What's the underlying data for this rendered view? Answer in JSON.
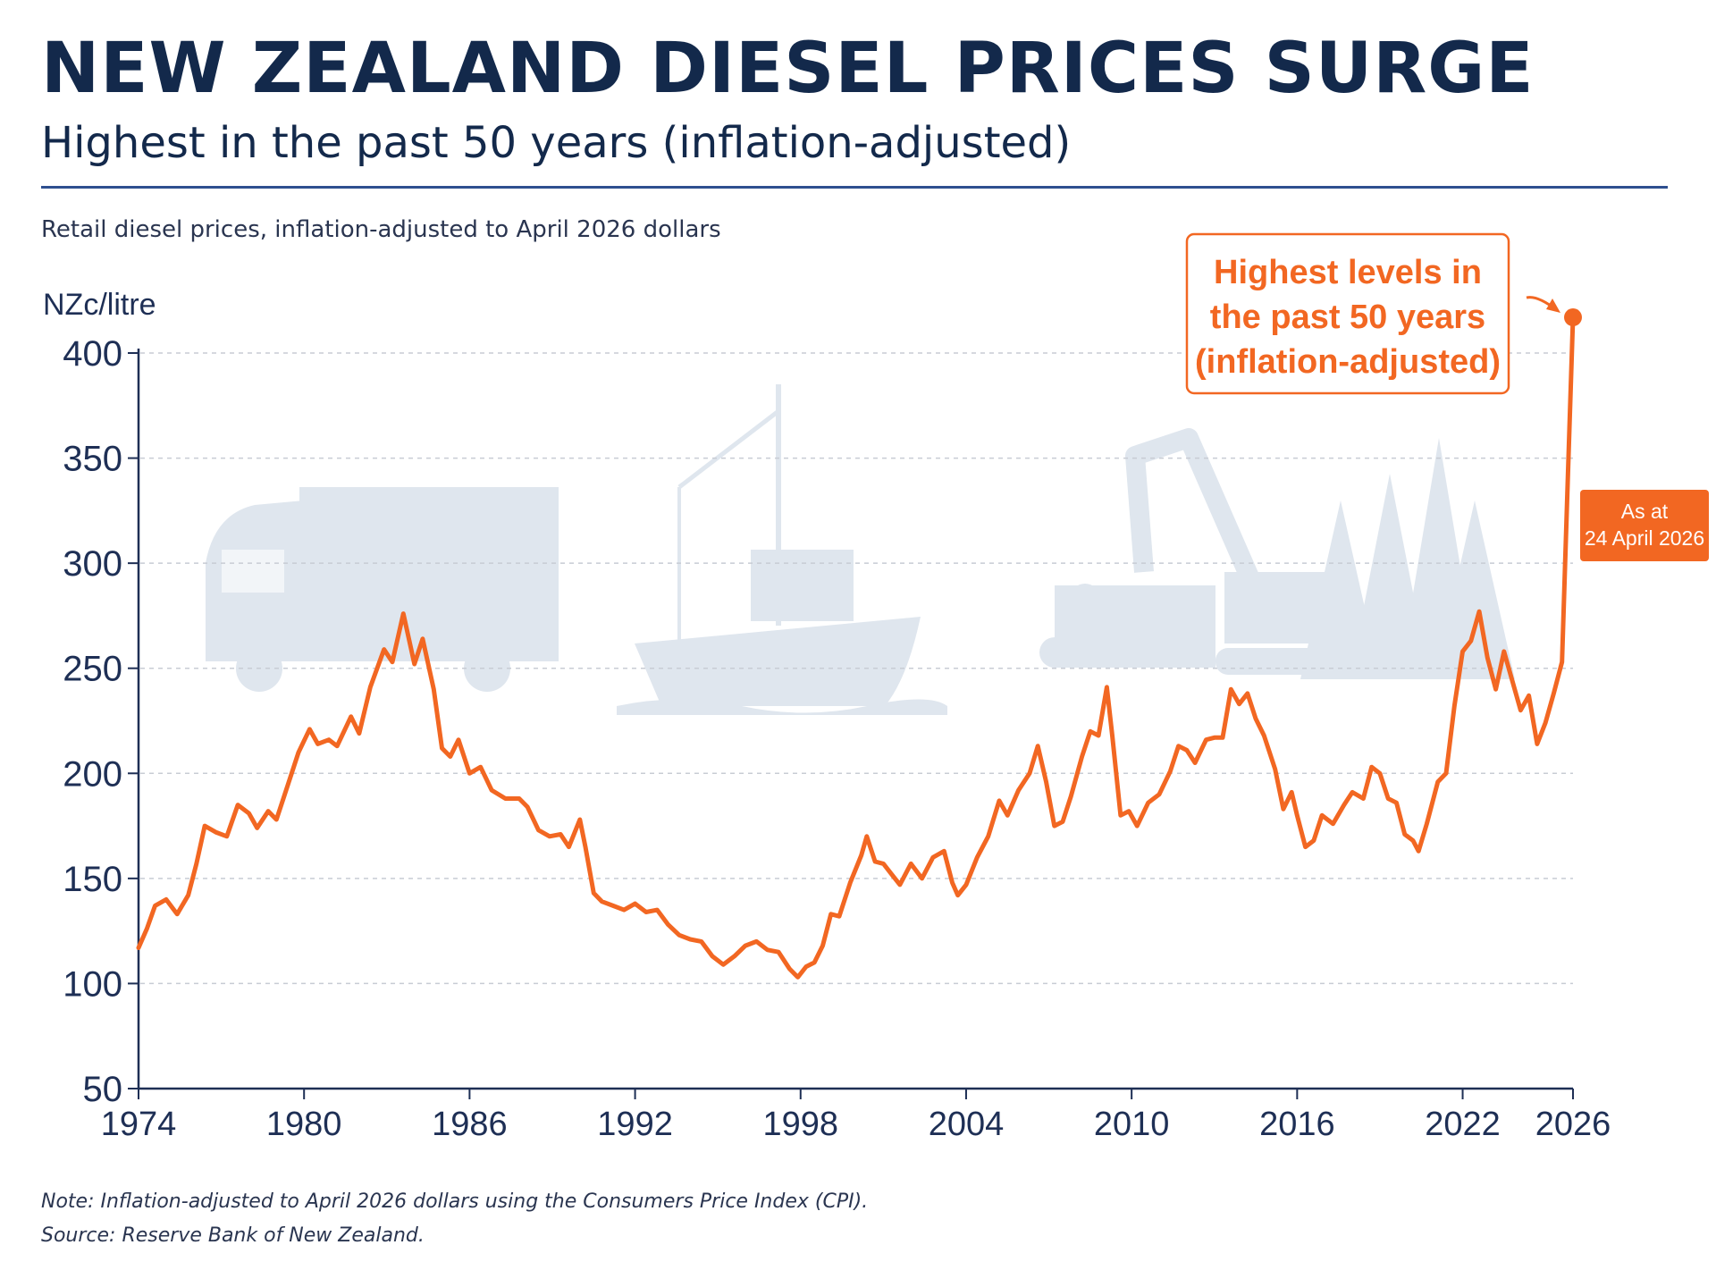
{
  "header": {
    "title": "NEW ZEALAND DIESEL PRICES SURGE",
    "subtitle": "Highest in the past 50 years (inflation-adjusted)",
    "caption": "Retail diesel prices, inflation-adjusted to April 2026 dollars"
  },
  "footer": {
    "note": "Note: Inflation-adjusted to April 2026 dollars using the Consumers Price Index (CPI).",
    "source": "Source: Reserve Bank of New Zealand."
  },
  "colors": {
    "title": "#13294b",
    "axis": "#1e2f55",
    "grid": "#c8ccd4",
    "series": "#f26722",
    "callout_text": "#f26722",
    "badge_bg": "#f26722",
    "badge_text": "#ffffff",
    "illustration": "#dfe6ee"
  },
  "illustration_icons": [
    "truck-icon",
    "fishing-boat-icon",
    "excavator-icon",
    "log-pile-icon",
    "pine-trees-icon"
  ],
  "chart_data": {
    "type": "line",
    "title": "NEW ZEALAND DIESEL PRICES SURGE",
    "subtitle": "Highest in the past 50 years (inflation-adjusted)",
    "xlabel": "",
    "ylabel": "NZc/litre",
    "xlim": [
      1974,
      2026
    ],
    "ylim": [
      50,
      400
    ],
    "grid": true,
    "x_ticks": [
      "1974",
      "1980",
      "1986",
      "1992",
      "1998",
      "2004",
      "2010",
      "2016",
      "2022",
      "2026"
    ],
    "y_ticks": [
      "50",
      "100",
      "150",
      "200",
      "250",
      "300",
      "350",
      "400"
    ],
    "series": [
      {
        "values": [
          [
            1974.0,
            117
          ],
          [
            1974.3,
            126
          ],
          [
            1974.6,
            137
          ],
          [
            1975.0,
            140
          ],
          [
            1975.4,
            133
          ],
          [
            1975.8,
            142
          ],
          [
            1976.1,
            157
          ],
          [
            1976.4,
            175
          ],
          [
            1976.8,
            172
          ],
          [
            1977.2,
            170
          ],
          [
            1977.6,
            185
          ],
          [
            1978.0,
            181
          ],
          [
            1978.3,
            174
          ],
          [
            1978.7,
            182
          ],
          [
            1979.0,
            178
          ],
          [
            1979.4,
            194
          ],
          [
            1979.8,
            210
          ],
          [
            1980.2,
            221
          ],
          [
            1980.5,
            214
          ],
          [
            1980.9,
            216
          ],
          [
            1981.2,
            213
          ],
          [
            1981.7,
            227
          ],
          [
            1982.0,
            219
          ],
          [
            1982.4,
            241
          ],
          [
            1982.9,
            259
          ],
          [
            1983.2,
            253
          ],
          [
            1983.6,
            276
          ],
          [
            1984.0,
            252
          ],
          [
            1984.3,
            264
          ],
          [
            1984.7,
            240
          ],
          [
            1985.0,
            212
          ],
          [
            1985.3,
            208
          ],
          [
            1985.6,
            216
          ],
          [
            1986.0,
            200
          ],
          [
            1986.4,
            203
          ],
          [
            1986.8,
            192
          ],
          [
            1987.3,
            188
          ],
          [
            1987.8,
            188
          ],
          [
            1988.1,
            184
          ],
          [
            1988.5,
            173
          ],
          [
            1988.9,
            170
          ],
          [
            1989.3,
            171
          ],
          [
            1989.6,
            165
          ],
          [
            1990.0,
            178
          ],
          [
            1990.2,
            165
          ],
          [
            1990.5,
            143
          ],
          [
            1990.8,
            139
          ],
          [
            1991.2,
            137
          ],
          [
            1991.6,
            135
          ],
          [
            1992.0,
            138
          ],
          [
            1992.4,
            134
          ],
          [
            1992.8,
            135
          ],
          [
            1993.2,
            128
          ],
          [
            1993.6,
            123
          ],
          [
            1994.0,
            121
          ],
          [
            1994.4,
            120
          ],
          [
            1994.8,
            113
          ],
          [
            1995.2,
            109
          ],
          [
            1995.6,
            113
          ],
          [
            1996.0,
            118
          ],
          [
            1996.4,
            120
          ],
          [
            1996.8,
            116
          ],
          [
            1997.2,
            115
          ],
          [
            1997.6,
            107
          ],
          [
            1997.9,
            103
          ],
          [
            1998.2,
            108
          ],
          [
            1998.5,
            110
          ],
          [
            1998.8,
            118
          ],
          [
            1999.1,
            133
          ],
          [
            1999.4,
            132
          ],
          [
            1999.8,
            148
          ],
          [
            2000.2,
            161
          ],
          [
            2000.4,
            170
          ],
          [
            2000.7,
            158
          ],
          [
            2001.0,
            157
          ],
          [
            2001.3,
            152
          ],
          [
            2001.6,
            147
          ],
          [
            2002.0,
            157
          ],
          [
            2002.4,
            150
          ],
          [
            2002.8,
            160
          ],
          [
            2003.2,
            163
          ],
          [
            2003.5,
            148
          ],
          [
            2003.7,
            142
          ],
          [
            2004.0,
            147
          ],
          [
            2004.4,
            160
          ],
          [
            2004.8,
            170
          ],
          [
            2005.2,
            187
          ],
          [
            2005.5,
            180
          ],
          [
            2005.9,
            192
          ],
          [
            2006.3,
            200
          ],
          [
            2006.6,
            213
          ],
          [
            2006.9,
            196
          ],
          [
            2007.2,
            175
          ],
          [
            2007.5,
            177
          ],
          [
            2007.8,
            189
          ],
          [
            2008.2,
            208
          ],
          [
            2008.5,
            220
          ],
          [
            2008.8,
            218
          ],
          [
            2009.1,
            241
          ],
          [
            2009.3,
            218
          ],
          [
            2009.6,
            180
          ],
          [
            2009.9,
            182
          ],
          [
            2010.2,
            175
          ],
          [
            2010.6,
            186
          ],
          [
            2011.0,
            190
          ],
          [
            2011.4,
            201
          ],
          [
            2011.7,
            213
          ],
          [
            2012.0,
            211
          ],
          [
            2012.3,
            205
          ],
          [
            2012.7,
            216
          ],
          [
            2013.0,
            217
          ],
          [
            2013.3,
            217
          ],
          [
            2013.6,
            240
          ],
          [
            2013.9,
            233
          ],
          [
            2014.2,
            238
          ],
          [
            2014.5,
            226
          ],
          [
            2014.8,
            218
          ],
          [
            2015.2,
            202
          ],
          [
            2015.5,
            183
          ],
          [
            2015.8,
            191
          ],
          [
            2016.0,
            180
          ],
          [
            2016.3,
            165
          ],
          [
            2016.6,
            168
          ],
          [
            2016.9,
            180
          ],
          [
            2017.3,
            176
          ],
          [
            2017.7,
            185
          ],
          [
            2018.0,
            191
          ],
          [
            2018.4,
            188
          ],
          [
            2018.7,
            203
          ],
          [
            2019.0,
            200
          ],
          [
            2019.3,
            188
          ],
          [
            2019.6,
            186
          ],
          [
            2019.9,
            171
          ],
          [
            2020.2,
            168
          ],
          [
            2020.4,
            163
          ],
          [
            2020.7,
            176
          ],
          [
            2021.1,
            196
          ],
          [
            2021.4,
            200
          ],
          [
            2021.7,
            232
          ],
          [
            2022.0,
            258
          ],
          [
            2022.3,
            263
          ],
          [
            2022.6,
            277
          ],
          [
            2022.9,
            255
          ],
          [
            2023.2,
            240
          ],
          [
            2023.5,
            258
          ],
          [
            2023.8,
            244
          ],
          [
            2024.1,
            230
          ],
          [
            2024.4,
            237
          ],
          [
            2024.7,
            214
          ],
          [
            2025.0,
            224
          ],
          [
            2025.3,
            238
          ],
          [
            2025.6,
            253
          ],
          [
            2025.8,
            335
          ],
          [
            2026.0,
            417
          ]
        ]
      }
    ],
    "annotations": [
      {
        "text": [
          "Highest levels in",
          "the past 50 years",
          "(inflation-adjusted)"
        ],
        "x": 2026.0,
        "y": 417
      },
      {
        "text": [
          "As at",
          "24 April 2026"
        ]
      }
    ]
  }
}
